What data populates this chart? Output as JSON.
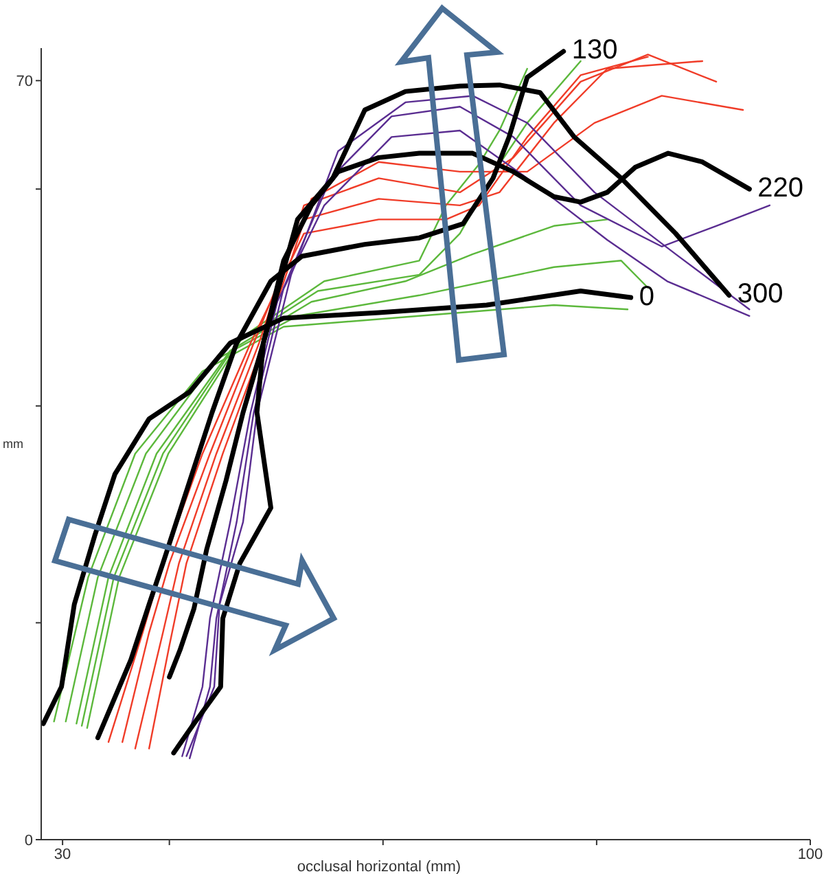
{
  "chart_data": {
    "type": "line",
    "xlabel": "occlusal horizontal (mm)",
    "ylabel": "mm",
    "xlim": [
      28,
      100
    ],
    "ylim": [
      0,
      73
    ],
    "xticks": [
      30,
      {
        "value": 40,
        "label": null
      },
      {
        "value": 60,
        "label": null
      },
      {
        "value": 80,
        "label": null
      },
      100
    ],
    "yticks": [
      0,
      {
        "value": 20,
        "label": null
      },
      {
        "value": 40,
        "label": null
      },
      {
        "value": 60,
        "label": null
      },
      70
    ],
    "series": [
      {
        "color": "#5cb83c",
        "x": [
          29.2,
          32.4,
          36.8,
          43.1,
          50.7,
          63.4,
          76.0,
          82.9
        ],
        "values": [
          10.9,
          24.2,
          35.6,
          43.2,
          47.3,
          48.3,
          49.3,
          48.9
        ]
      },
      {
        "color": "#5cb83c",
        "x": [
          30.3,
          33.3,
          37.8,
          44.4,
          52.0,
          63.4,
          76.0,
          82.3,
          84.8
        ],
        "values": [
          10.9,
          24.2,
          35.6,
          44.3,
          48.3,
          50.2,
          52.8,
          53.4,
          50.9
        ]
      },
      {
        "color": "#5cb83c",
        "x": [
          31.3,
          34.3,
          38.8,
          45.7,
          53.3,
          62.1,
          68.4,
          76.0,
          81.0
        ],
        "values": [
          10.7,
          24.2,
          35.6,
          45.1,
          49.6,
          51.5,
          54.0,
          56.6,
          57.2
        ]
      },
      {
        "color": "#5cb83c",
        "x": [
          31.8,
          34.8,
          39.4,
          46.3,
          53.9,
          63.4,
          67.2,
          70.9,
          73.5,
          78.5
        ],
        "values": [
          10.5,
          24.2,
          35.6,
          45.8,
          50.6,
          52.1,
          55.9,
          62.3,
          66.1,
          71.8
        ]
      },
      {
        "color": "#5cb83c",
        "x": [
          32.3,
          35.3,
          39.9,
          46.9,
          54.5,
          63.4,
          65.9,
          69.0,
          70.9,
          73.5
        ],
        "values": [
          10.3,
          24.2,
          35.6,
          46.4,
          51.5,
          53.4,
          58.5,
          62.3,
          65.4,
          71.1
        ]
      },
      {
        "color": "#f03c28",
        "x": [
          34.3,
          37.5,
          39.4,
          43.1,
          47.6,
          52.6,
          59.6,
          65.9,
          69.0,
          73.5,
          78.5,
          84.8
        ],
        "values": [
          9.0,
          19.1,
          25.5,
          35.6,
          45.8,
          55.9,
          57.2,
          57.2,
          58.5,
          64.8,
          70.5,
          72.2
        ]
      },
      {
        "color": "#f03c28",
        "x": [
          35.6,
          38.1,
          40.0,
          43.8,
          47.9,
          52.6,
          59.6,
          67.2,
          70.9,
          76.0,
          81.0,
          89.9
        ],
        "values": [
          9.0,
          19.1,
          25.5,
          35.6,
          45.8,
          57.2,
          59.1,
          58.5,
          59.7,
          66.1,
          71.1,
          71.8
        ]
      },
      {
        "color": "#f03c28",
        "x": [
          36.8,
          39.4,
          40.9,
          44.4,
          48.4,
          52.6,
          59.6,
          67.2,
          72.2,
          78.5,
          84.8,
          91.2
        ],
        "values": [
          8.4,
          19.1,
          25.5,
          35.6,
          45.8,
          58.5,
          61.0,
          59.7,
          62.9,
          69.9,
          72.4,
          69.9
        ]
      },
      {
        "color": "#f03c28",
        "x": [
          38.1,
          40.0,
          41.6,
          45.0,
          48.8,
          53.3,
          59.6,
          67.2,
          73.5,
          79.8,
          86.1,
          93.7
        ],
        "values": [
          8.4,
          17.9,
          25.5,
          35.6,
          45.8,
          59.1,
          62.5,
          61.6,
          61.6,
          66.1,
          68.6,
          67.3
        ]
      },
      {
        "color": "#5a2d91",
        "x": [
          41.2,
          43.1,
          43.8,
          45.7,
          47.6,
          50.1,
          54.5,
          60.8,
          67.2,
          73.5,
          81.0,
          86.6,
          94.3
        ],
        "values": [
          7.7,
          14.1,
          20.4,
          29.3,
          39.4,
          49.6,
          58.5,
          64.8,
          65.4,
          61.0,
          55.3,
          51.5,
          48.3
        ]
      },
      {
        "color": "#5a2d91",
        "x": [
          41.9,
          43.8,
          44.4,
          46.3,
          47.9,
          50.7,
          55.1,
          60.8,
          67.2,
          72.2,
          78.5,
          86.1,
          91.2,
          96.2
        ],
        "values": [
          7.5,
          14.1,
          20.4,
          29.3,
          39.4,
          50.9,
          61.0,
          66.7,
          67.6,
          64.8,
          58.5,
          54.7,
          56.6,
          58.5
        ]
      },
      {
        "color": "#5a2d91",
        "x": [
          41.6,
          44.2,
          44.7,
          46.9,
          48.2,
          51.4,
          55.8,
          62.1,
          68.4,
          73.5,
          79.8,
          87.4,
          94.3
        ],
        "values": [
          7.7,
          14.1,
          21.7,
          29.3,
          39.4,
          52.1,
          63.5,
          68.0,
          68.6,
          66.1,
          59.7,
          54.0,
          48.9
        ]
      },
      {
        "name": "0",
        "color": "#000000",
        "x": [
          28.2,
          29.9,
          31.1,
          33.0,
          34.9,
          38.1,
          41.9,
          45.7,
          50.7,
          59.6,
          69.7,
          78.5,
          83.2
        ],
        "values": [
          10.7,
          14.1,
          21.7,
          28.0,
          33.7,
          38.8,
          41.3,
          45.8,
          48.1,
          48.6,
          49.3,
          50.6,
          50.0
        ]
      },
      {
        "name": "130",
        "color": "#000000",
        "x": [
          33.3,
          36.4,
          38.1,
          39.4,
          44.0,
          46.3,
          49.5,
          52.4,
          58.3,
          63.4,
          67.5,
          70.3,
          71.8,
          73.5,
          76.9
        ],
        "values": [
          9.4,
          16.6,
          21.7,
          25.5,
          39.4,
          45.8,
          51.5,
          53.8,
          54.9,
          55.5,
          56.8,
          61.0,
          64.8,
          70.3,
          72.7
        ]
      },
      {
        "name": "220",
        "color": "#000000",
        "x": [
          40.0,
          41.0,
          42.3,
          43.5,
          45.3,
          46.9,
          48.8,
          50.7,
          53.3,
          55.8,
          59.6,
          63.4,
          68.4,
          72.2,
          76.0,
          78.5,
          81.0,
          83.6,
          86.7,
          89.9,
          94.3
        ],
        "values": [
          15.0,
          17.5,
          21.3,
          26.8,
          33.1,
          39.4,
          45.8,
          53.4,
          58.5,
          61.6,
          62.9,
          63.3,
          63.3,
          61.6,
          59.3,
          58.8,
          59.7,
          62.0,
          63.3,
          62.5,
          60.0
        ]
      },
      {
        "name": "300",
        "color": "#000000",
        "x": [
          40.4,
          42.3,
          44.8,
          45.0,
          46.6,
          49.5,
          48.2,
          48.8,
          52.0,
          55.3,
          58.3,
          62.1,
          67.2,
          70.9,
          74.7,
          77.9,
          82.3,
          87.4,
          92.4
        ],
        "values": [
          8.0,
          10.7,
          14.1,
          20.4,
          25.5,
          30.6,
          39.4,
          45.8,
          57.2,
          61.0,
          67.3,
          69.0,
          69.5,
          69.6,
          68.9,
          64.8,
          61.0,
          55.9,
          50.2
        ]
      }
    ]
  }
}
